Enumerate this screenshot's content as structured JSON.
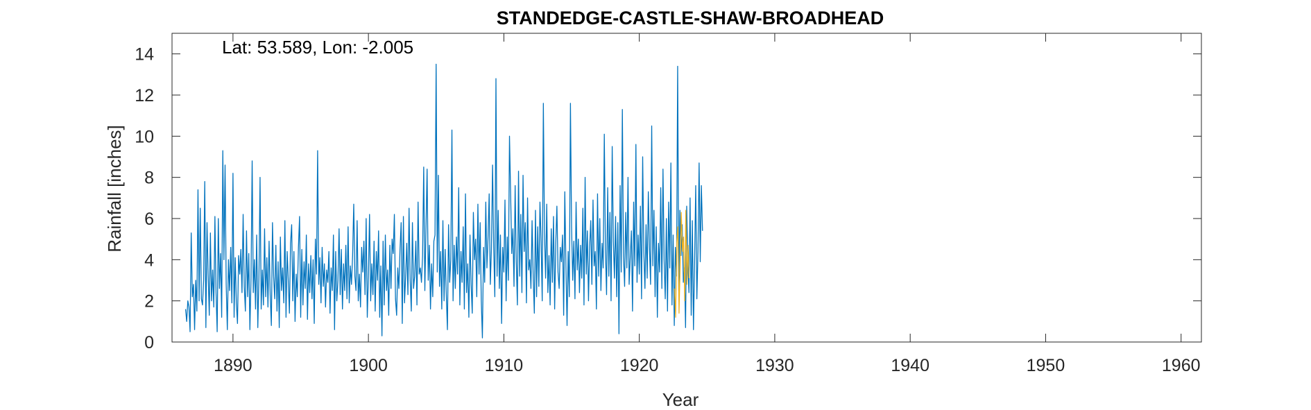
{
  "chart_data": {
    "type": "line",
    "title": "STANDEDGE-CASTLE-SHAW-BROADHEAD",
    "xlabel": "Year",
    "ylabel": "Rainfall [inches]",
    "annotation": "Lat: 53.589, Lon: -2.005",
    "xlim": [
      1885.5,
      1961.5
    ],
    "ylim": [
      0,
      15
    ],
    "xticks": [
      1890,
      1900,
      1910,
      1920,
      1930,
      1940,
      1950,
      1960
    ],
    "xtick_labels": [
      "1890",
      "1900",
      "1910",
      "1920",
      "1930",
      "1940",
      "1950",
      "1960"
    ],
    "yticks": [
      0,
      2,
      4,
      6,
      8,
      10,
      12,
      14
    ],
    "ytick_labels": [
      "0",
      "2",
      "4",
      "6",
      "8",
      "10",
      "12",
      "14"
    ],
    "grid": false,
    "colors": {
      "primary": "#0072BD",
      "infilled": "#EDB120"
    },
    "series": [
      {
        "color": "#0072BD",
        "start_year": 1886.5,
        "step_years": 0.08333,
        "values": [
          1.6,
          1.0,
          2.0,
          1.7,
          0.5,
          5.3,
          2.2,
          2.8,
          0.6,
          3.0,
          1.5,
          7.4,
          2.0,
          6.5,
          2.1,
          1.8,
          3.0,
          7.8,
          0.7,
          5.8,
          3.3,
          1.3,
          5.3,
          2.0,
          3.5,
          1.7,
          6.1,
          2.4,
          0.5,
          6.0,
          2.6,
          4.3,
          1.2,
          9.3,
          4.0,
          8.6,
          2.8,
          0.6,
          4.0,
          2.5,
          4.6,
          1.9,
          8.2,
          1.2,
          4.1,
          1.9,
          0.9,
          4.2,
          3.3,
          4.5,
          2.4,
          6.2,
          2.7,
          1.5,
          5.4,
          2.2,
          4.3,
          0.6,
          3.1,
          8.8,
          2.4,
          4.0,
          1.6,
          5.2,
          0.7,
          3.1,
          8.0,
          1.6,
          3.5,
          1.8,
          5.5,
          2.2,
          4.1,
          1.7,
          4.9,
          2.3,
          0.8,
          5.8,
          3.2,
          2.1,
          4.7,
          1.5,
          3.9,
          0.7,
          5.1,
          2.5,
          3.6,
          1.9,
          5.9,
          1.2,
          4.4,
          3.0,
          1.4,
          4.8,
          5.7,
          2.0,
          4.4,
          1.0,
          3.3,
          2.2,
          4.6,
          6.1,
          1.2,
          4.5,
          1.8,
          3.9,
          2.6,
          5.2,
          1.1,
          3.8,
          2.4,
          4.2,
          2.1,
          4.0,
          0.9,
          5.0,
          3.3,
          9.3,
          2.8,
          4.1,
          1.9,
          4.6,
          2.7,
          3.8,
          1.7,
          3.5,
          2.9,
          4.4,
          1.4,
          3.6,
          2.5,
          5.2,
          0.6,
          4.4,
          2.0,
          3.0,
          5.5,
          2.3,
          4.5,
          1.6,
          3.8,
          2.5,
          4.7,
          2.1,
          5.6,
          1.9,
          3.7,
          2.8,
          4.2,
          6.7,
          3.2,
          2.5,
          5.9,
          2.0,
          3.3,
          1.7,
          4.6,
          3.4,
          4.9,
          2.3,
          6.0,
          1.2,
          3.2,
          6.2,
          2.0,
          3.8,
          2.3,
          4.9,
          1.5,
          4.4,
          3.0,
          5.4,
          1.2,
          3.7,
          0.3,
          4.9,
          1.8,
          5.2,
          2.5,
          3.5,
          1.3,
          4.7,
          2.6,
          5.0,
          4.3,
          6.2,
          2.1,
          1.3,
          3.6,
          2.6,
          4.5,
          5.8,
          0.9,
          6.1,
          1.9,
          3.2,
          4.8,
          2.3,
          6.5,
          3.0,
          1.5,
          5.8,
          2.6,
          3.2,
          4.9,
          1.8,
          6.8,
          3.3,
          3.6,
          2.9,
          4.2,
          8.5,
          2.5,
          5.5,
          8.4,
          3.0,
          4.7,
          1.6,
          3.8,
          2.2,
          4.9,
          5.2,
          13.5,
          3.4,
          8.1,
          2.7,
          4.4,
          1.6,
          5.9,
          2.0,
          4.5,
          2.3,
          0.6,
          5.7,
          2.9,
          4.0,
          10.3,
          2.0,
          4.7,
          2.6,
          5.1,
          3.3,
          7.5,
          1.8,
          4.4,
          2.9,
          5.6,
          1.6,
          7.2,
          2.4,
          3.8,
          1.2,
          5.2,
          2.8,
          1.4,
          6.3,
          4.0,
          5.0,
          2.2,
          6.7,
          3.3,
          5.8,
          2.0,
          0.2,
          4.6,
          2.9,
          6.8,
          3.6,
          5.1,
          7.2,
          2.8,
          4.5,
          8.6,
          4.6,
          2.2,
          12.8,
          3.2,
          6.4,
          2.6,
          5.2,
          0.9,
          4.6,
          3.4,
          6.9,
          2.0,
          5.1,
          3.0,
          10.0,
          7.2,
          4.3,
          5.5,
          2.7,
          7.6,
          3.9,
          1.8,
          8.3,
          3.2,
          6.2,
          2.4,
          8.1,
          4.4,
          5.8,
          1.9,
          7.0,
          3.5,
          4.0,
          2.6,
          5.9,
          3.2,
          1.4,
          6.4,
          2.2,
          5.6,
          2.7,
          6.8,
          4.9,
          2.0,
          11.6,
          5.3,
          3.1,
          6.7,
          2.4,
          4.2,
          1.8,
          5.5,
          2.9,
          6.1,
          1.6,
          4.8,
          6.6,
          3.4,
          2.6,
          4.6,
          3.9,
          5.2,
          1.3,
          7.3,
          3.7,
          0.8,
          4.4,
          2.2,
          11.6,
          5.6,
          3.0,
          4.9,
          2.1,
          6.8,
          3.5,
          5.0,
          2.4,
          4.7,
          3.1,
          6.5,
          1.8,
          8.0,
          3.3,
          5.4,
          2.0,
          4.6,
          5.9,
          2.8,
          6.9,
          3.7,
          4.4,
          1.6,
          7.2,
          3.2,
          6.0,
          2.5,
          4.8,
          3.6,
          10.1,
          4.5,
          2.3,
          7.5,
          3.2,
          6.3,
          2.0,
          9.5,
          4.9,
          3.1,
          6.1,
          2.2,
          5.8,
          0.4,
          7.6,
          3.4,
          11.3,
          4.2,
          2.7,
          6.3,
          3.6,
          8.0,
          2.8,
          4.1,
          5.4,
          1.5,
          6.8,
          3.7,
          9.6,
          2.9,
          5.2,
          3.3,
          6.6,
          2.1,
          9.0,
          4.4,
          2.6,
          5.7,
          3.1,
          7.3,
          4.6,
          2.8,
          10.5,
          3.7,
          6.4,
          2.2,
          5.6,
          1.2,
          4.8,
          3.4,
          7.5,
          2.6,
          8.4,
          4.0,
          2.1,
          6.0,
          1.5,
          6.8,
          3.6,
          8.7,
          1.8,
          5.2,
          0.8,
          4.6,
          3.2,
          13.4,
          2.5,
          6.4,
          4.2,
          5.7,
          2.9,
          3.6,
          0.7,
          6.6,
          3.8,
          2.4,
          7.0,
          1.3,
          5.9,
          0.6,
          3.9,
          7.6,
          2.1,
          4.4,
          8.7,
          3.9,
          7.6,
          5.4
        ]
      },
      {
        "color": "#EDB120",
        "start_year": 1922.6,
        "step_years": 0.08333,
        "values": [
          2.6,
          1.2,
          4.8,
          5.6,
          1.4,
          3.8,
          6.3,
          4.4,
          5.1,
          2.0,
          6.4,
          2.8,
          4.7,
          3.1
        ]
      }
    ]
  }
}
